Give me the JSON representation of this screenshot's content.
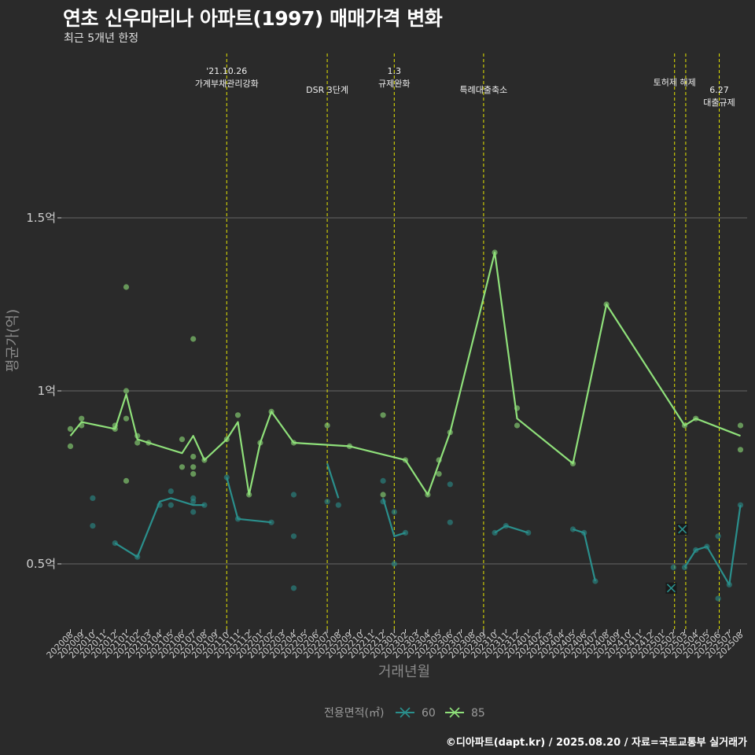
{
  "title": "연초 신우마리나 아파트(1997) 매매가격 변화",
  "subtitle": "최근 5개년 한정",
  "caption": "©디아파트(dapt.kr) / 2025.08.20 / 자료=국토교통부 실거래가",
  "colors": {
    "background": "#2a2a2a",
    "grid": "#5a5a5a",
    "event_line": "#e6e600",
    "series_60": "#2a8f8c",
    "series_85": "#8fe07a"
  },
  "chart_data": {
    "type": "line",
    "title": "연초 신우마리나 아파트(1997) 매매가격 변화",
    "subtitle": "최근 5개년 한정",
    "xlabel": "거래년월",
    "ylabel": "평균가(억)",
    "ylim": [
      0.32,
      1.9
    ],
    "yticks": [
      {
        "value": 0.5,
        "label": "0.5억"
      },
      {
        "value": 1.0,
        "label": "1억"
      },
      {
        "value": 1.5,
        "label": "1.5억"
      }
    ],
    "grid": true,
    "legend": {
      "title": "전용면적(㎡)",
      "position": "bottom"
    },
    "x_categories": [
      "202008",
      "202009",
      "202010",
      "202011",
      "202012",
      "202101",
      "202102",
      "202103",
      "202104",
      "202105",
      "202106",
      "202107",
      "202108",
      "202109",
      "202110",
      "202111",
      "202112",
      "202201",
      "202202",
      "202203",
      "202204",
      "202205",
      "202206",
      "202207",
      "202208",
      "202209",
      "202210",
      "202211",
      "202212",
      "202301",
      "202302",
      "202303",
      "202304",
      "202305",
      "202306",
      "202307",
      "202308",
      "202309",
      "202310",
      "202311",
      "202312",
      "202401",
      "202402",
      "202403",
      "202404",
      "202405",
      "202406",
      "202407",
      "202408",
      "202409",
      "202410",
      "202411",
      "202412",
      "202501",
      "202502",
      "202503",
      "202504",
      "202505",
      "202506",
      "202507",
      "202508"
    ],
    "events": [
      {
        "x": 14,
        "label": "'21.10.26\n가계부채관리강화",
        "level": 0
      },
      {
        "x": 23,
        "label": "DSR 3단계",
        "level": 1
      },
      {
        "x": 29,
        "label": "1.3\n규제완화",
        "level": 0
      },
      {
        "x": 37,
        "label": "특례대출축소",
        "level": 1
      },
      {
        "x": 54.1,
        "label": "토허제 해제",
        "level": 0.6
      },
      {
        "x": 55.1,
        "label": "",
        "level": 0
      },
      {
        "x": 58.1,
        "label": "6.27\n대출규제",
        "level": 1
      }
    ],
    "series": [
      {
        "name": "60",
        "color": "#2a8f8c",
        "line_segments": [
          [
            [
              4,
              0.56
            ],
            [
              6,
              0.52
            ],
            [
              8,
              0.68
            ],
            [
              9,
              0.69
            ],
            [
              11,
              0.67
            ],
            [
              12,
              0.67
            ]
          ],
          [
            [
              14,
              0.75
            ],
            [
              15,
              0.63
            ],
            [
              18,
              0.62
            ]
          ],
          [
            [
              23,
              0.79
            ],
            [
              24,
              0.69
            ]
          ],
          [
            [
              28,
              0.69
            ],
            [
              29,
              0.58
            ],
            [
              30,
              0.59
            ]
          ],
          [
            [
              38,
              0.59
            ],
            [
              39,
              0.61
            ],
            [
              41,
              0.59
            ]
          ],
          [
            [
              45,
              0.6
            ],
            [
              46,
              0.59
            ],
            [
              47,
              0.45
            ]
          ],
          [
            [
              55,
              0.49
            ],
            [
              56,
              0.54
            ],
            [
              57,
              0.55
            ],
            [
              59,
              0.44
            ],
            [
              60,
              0.67
            ]
          ]
        ],
        "points": [
          [
            2,
            0.69
          ],
          [
            2,
            0.61
          ],
          [
            4,
            0.56
          ],
          [
            6,
            0.52
          ],
          [
            8,
            0.67
          ],
          [
            9,
            0.71
          ],
          [
            9,
            0.67
          ],
          [
            11,
            0.69
          ],
          [
            11,
            0.68
          ],
          [
            11,
            0.65
          ],
          [
            12,
            0.67
          ],
          [
            14,
            0.75
          ],
          [
            15,
            0.63
          ],
          [
            18,
            0.62
          ],
          [
            20,
            0.7
          ],
          [
            20,
            0.58
          ],
          [
            20,
            0.43
          ],
          [
            23,
            0.68
          ],
          [
            24,
            0.67
          ],
          [
            28,
            0.74
          ],
          [
            28,
            0.68
          ],
          [
            29,
            0.65
          ],
          [
            29,
            0.5
          ],
          [
            30,
            0.59
          ],
          [
            34,
            0.73
          ],
          [
            34,
            0.62
          ],
          [
            38,
            0.59
          ],
          [
            39,
            0.61
          ],
          [
            41,
            0.59
          ],
          [
            45,
            0.6
          ],
          [
            46,
            0.59
          ],
          [
            47,
            0.45
          ],
          [
            54,
            0.49
          ],
          [
            55,
            0.49
          ],
          [
            56,
            0.54
          ],
          [
            57,
            0.55
          ],
          [
            58,
            0.4
          ],
          [
            58,
            0.58
          ],
          [
            59,
            0.44
          ],
          [
            60,
            0.67
          ]
        ],
        "cross_points": [
          [
            53.8,
            0.43
          ],
          [
            54.8,
            0.6
          ]
        ]
      },
      {
        "name": "85",
        "color": "#8fe07a",
        "line_segments": [
          [
            [
              0,
              0.87
            ],
            [
              1,
              0.91
            ],
            [
              4,
              0.89
            ],
            [
              5,
              0.99
            ],
            [
              6,
              0.86
            ],
            [
              7,
              0.85
            ],
            [
              10,
              0.82
            ],
            [
              11,
              0.87
            ],
            [
              12,
              0.8
            ],
            [
              14,
              0.86
            ],
            [
              15,
              0.91
            ],
            [
              16,
              0.7
            ],
            [
              17,
              0.85
            ],
            [
              18,
              0.94
            ],
            [
              20,
              0.85
            ],
            [
              25,
              0.84
            ],
            [
              30,
              0.8
            ],
            [
              32,
              0.7
            ],
            [
              34,
              0.88
            ],
            [
              38,
              1.4
            ],
            [
              40,
              0.92
            ],
            [
              45,
              0.79
            ],
            [
              48,
              1.25
            ],
            [
              55,
              0.9
            ],
            [
              56,
              0.92
            ],
            [
              60,
              0.87
            ]
          ]
        ],
        "points": [
          [
            0,
            0.89
          ],
          [
            0,
            0.84
          ],
          [
            1,
            0.92
          ],
          [
            1,
            0.9
          ],
          [
            4,
            0.9
          ],
          [
            4,
            0.89
          ],
          [
            5,
            1.3
          ],
          [
            5,
            1.0
          ],
          [
            5,
            0.92
          ],
          [
            5,
            0.74
          ],
          [
            6,
            0.87
          ],
          [
            6,
            0.85
          ],
          [
            7,
            0.85
          ],
          [
            10,
            0.86
          ],
          [
            10,
            0.78
          ],
          [
            11,
            1.15
          ],
          [
            11,
            0.81
          ],
          [
            11,
            0.78
          ],
          [
            11,
            0.76
          ],
          [
            12,
            0.8
          ],
          [
            14,
            0.86
          ],
          [
            15,
            0.93
          ],
          [
            16,
            0.7
          ],
          [
            17,
            0.85
          ],
          [
            18,
            0.94
          ],
          [
            20,
            0.85
          ],
          [
            23,
            0.9
          ],
          [
            25,
            0.84
          ],
          [
            28,
            0.93
          ],
          [
            28,
            0.7
          ],
          [
            30,
            0.8
          ],
          [
            32,
            0.7
          ],
          [
            33,
            0.8
          ],
          [
            33,
            0.76
          ],
          [
            34,
            0.88
          ],
          [
            38,
            1.4
          ],
          [
            40,
            0.95
          ],
          [
            40,
            0.9
          ],
          [
            45,
            0.79
          ],
          [
            48,
            1.25
          ],
          [
            55,
            0.9
          ],
          [
            56,
            0.92
          ],
          [
            60,
            0.9
          ],
          [
            60,
            0.83
          ]
        ],
        "cross_points": []
      }
    ]
  }
}
